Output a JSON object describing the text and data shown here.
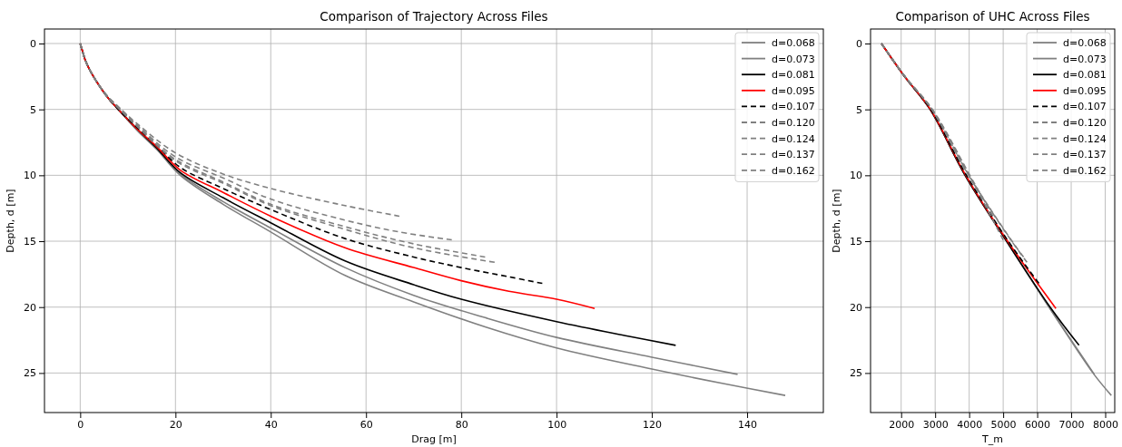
{
  "chart_data": [
    {
      "type": "line",
      "title": "Comparison of Trajectory Across Files",
      "xlabel": "Drag [m]",
      "ylabel": "Depth, d [m]",
      "xlim": [
        -7.5,
        156
      ],
      "ylim": [
        28,
        -1.1
      ],
      "xticks": [
        0,
        20,
        40,
        60,
        80,
        100,
        120,
        140
      ],
      "yticks": [
        0,
        5,
        10,
        15,
        20,
        25
      ],
      "grid": true,
      "legend": "top right",
      "series": [
        {
          "name": "d=0.068",
          "color": "#808080",
          "line_style": "solid",
          "x": [
            0,
            0.5,
            1,
            2,
            4,
            6,
            8,
            12,
            16,
            21,
            30,
            40,
            55.6,
            70,
            85,
            100,
            120,
            135,
            148
          ],
          "values": [
            0,
            0.6,
            1.2,
            2,
            3.2,
            4.2,
            5,
            6.6,
            8,
            10,
            12.2,
            14.3,
            17.6,
            19.6,
            21.5,
            23.1,
            24.7,
            25.8,
            26.7
          ]
        },
        {
          "name": "d=0.073",
          "color": "#808080",
          "line_style": "solid",
          "x": [
            0,
            0.5,
            1,
            2,
            4,
            6,
            8,
            12,
            16,
            21,
            30,
            40,
            55.6,
            70,
            85,
            100,
            120,
            138
          ],
          "values": [
            0,
            0.6,
            1.2,
            2,
            3.2,
            4.2,
            5,
            6.6,
            8,
            9.9,
            12,
            14,
            17,
            19.1,
            20.8,
            22.3,
            23.8,
            25.1
          ]
        },
        {
          "name": "d=0.081",
          "color": "#000000",
          "line_style": "solid",
          "x": [
            0,
            0.5,
            1,
            2,
            4,
            6,
            8,
            12,
            16,
            21,
            30,
            40,
            55.6,
            70,
            80,
            100,
            115,
            125
          ],
          "values": [
            0,
            0.6,
            1.2,
            2,
            3.2,
            4.2,
            5,
            6.5,
            7.9,
            9.8,
            11.7,
            13.6,
            16.5,
            18.3,
            19.4,
            21.1,
            22.2,
            22.9
          ]
        },
        {
          "name": "d=0.095",
          "color": "#ff0000",
          "line_style": "solid",
          "x": [
            0,
            0.5,
            1,
            2,
            4,
            6,
            8,
            12,
            16,
            21,
            30,
            40,
            55.6,
            70,
            80,
            90,
            100,
            108
          ],
          "values": [
            0,
            0.6,
            1.2,
            2,
            3.2,
            4.2,
            5,
            6.5,
            7.8,
            9.6,
            11.3,
            13.1,
            15.5,
            17,
            18,
            18.8,
            19.4,
            20.1
          ]
        },
        {
          "name": "d=0.107",
          "color": "#000000",
          "line_style": "dashed",
          "x": [
            0,
            0.5,
            1,
            2,
            4,
            6,
            8,
            12,
            16,
            21,
            30,
            40,
            55.6,
            70,
            80,
            90,
            97
          ],
          "values": [
            0,
            0.6,
            1.2,
            2,
            3.2,
            4.2,
            5,
            6.4,
            7.7,
            9.4,
            11,
            12.6,
            14.8,
            16.2,
            17,
            17.7,
            18.2
          ]
        },
        {
          "name": "d=0.120",
          "color": "#808080",
          "line_style": "dashed",
          "x": [
            0,
            0.5,
            1,
            2,
            4,
            6,
            8,
            12,
            20,
            30,
            40,
            55.6,
            70,
            87
          ],
          "values": [
            0,
            0.6,
            1.2,
            2,
            3.2,
            4.2,
            4.9,
            6.3,
            8.9,
            10.6,
            12.3,
            14.1,
            15.5,
            16.6
          ]
        },
        {
          "name": "d=0.124",
          "color": "#808080",
          "line_style": "dashed",
          "x": [
            0,
            0.5,
            1,
            2,
            4,
            6,
            8,
            12,
            20,
            30,
            40,
            55.6,
            70,
            85
          ],
          "values": [
            0,
            0.6,
            1.2,
            2,
            3.2,
            4.2,
            4.9,
            6.3,
            8.8,
            10.5,
            12.2,
            13.9,
            15.2,
            16.2
          ]
        },
        {
          "name": "d=0.137",
          "color": "#808080",
          "line_style": "dashed",
          "x": [
            0,
            0.5,
            1,
            2,
            4,
            6,
            8,
            12,
            20,
            30,
            40,
            55.6,
            67,
            78
          ],
          "values": [
            0,
            0.6,
            1.2,
            2,
            3.2,
            4.1,
            4.8,
            6.2,
            8.6,
            10.2,
            11.8,
            13.4,
            14.3,
            14.9
          ]
        },
        {
          "name": "d=0.162",
          "color": "#808080",
          "line_style": "dashed",
          "x": [
            0,
            0.5,
            1,
            2,
            4,
            6,
            8,
            12,
            20,
            30,
            40,
            55.6,
            67
          ],
          "values": [
            0,
            0.6,
            1.2,
            2,
            3.2,
            4.1,
            4.8,
            6.1,
            8.3,
            9.9,
            11,
            12.3,
            13.1
          ]
        }
      ]
    },
    {
      "type": "line",
      "title": "Comparison of UHC Across Files",
      "xlabel": "T_m",
      "ylabel": "Depth, d [m]",
      "xlim": [
        1100,
        8280
      ],
      "ylim": [
        28,
        -1.1
      ],
      "xticks": [
        2000,
        3000,
        4000,
        5000,
        6000,
        7000,
        8000
      ],
      "yticks": [
        0,
        5,
        10,
        15,
        20,
        25
      ],
      "grid": true,
      "legend": "top right",
      "series": [
        {
          "name": "d=0.068",
          "color": "#808080",
          "line_style": "solid",
          "x": [
            1420,
            2100,
            2850,
            3880,
            5100,
            6350,
            7640,
            8180
          ],
          "values": [
            0,
            2.5,
            5,
            10,
            15,
            20,
            25,
            26.7
          ]
        },
        {
          "name": "d=0.073",
          "color": "#808080",
          "line_style": "solid",
          "x": [
            1420,
            2100,
            2850,
            3880,
            5100,
            6350,
            7680
          ],
          "values": [
            0,
            2.5,
            5,
            10,
            15,
            20,
            25.1
          ]
        },
        {
          "name": "d=0.081",
          "color": "#000000",
          "line_style": "solid",
          "x": [
            1420,
            2100,
            2850,
            3880,
            5100,
            6380,
            7230
          ],
          "values": [
            0,
            2.5,
            5,
            10,
            15,
            20,
            22.9
          ]
        },
        {
          "name": "d=0.095",
          "color": "#ff0000",
          "line_style": "solid",
          "x": [
            1420,
            2100,
            2860,
            3900,
            5130,
            6550
          ],
          "values": [
            0,
            2.5,
            5,
            10,
            15,
            20.1
          ]
        },
        {
          "name": "d=0.107",
          "color": "#000000",
          "line_style": "dashed",
          "x": [
            1420,
            2100,
            2870,
            3920,
            5150,
            6050
          ],
          "values": [
            0,
            2.5,
            5,
            10,
            15,
            18.2
          ]
        },
        {
          "name": "d=0.120",
          "color": "#808080",
          "line_style": "dashed",
          "x": [
            1420,
            2110,
            2900,
            3980,
            5250,
            5700
          ],
          "values": [
            0,
            2.5,
            5,
            10,
            15,
            16.6
          ]
        },
        {
          "name": "d=0.124",
          "color": "#808080",
          "line_style": "dashed",
          "x": [
            1420,
            2110,
            2900,
            3990,
            5260,
            5600
          ],
          "values": [
            0,
            2.5,
            5,
            10,
            15,
            16.2
          ]
        },
        {
          "name": "d=0.137",
          "color": "#808080",
          "line_style": "dashed",
          "x": [
            1420,
            2110,
            2910,
            4000,
            5000
          ],
          "values": [
            0,
            2.5,
            5,
            10,
            14.9
          ]
        },
        {
          "name": "d=0.162",
          "color": "#808080",
          "line_style": "dashed",
          "x": [
            1420,
            2110,
            2920,
            4020,
            4700
          ],
          "values": [
            0,
            2.5,
            5,
            10,
            13.1
          ]
        }
      ]
    }
  ]
}
